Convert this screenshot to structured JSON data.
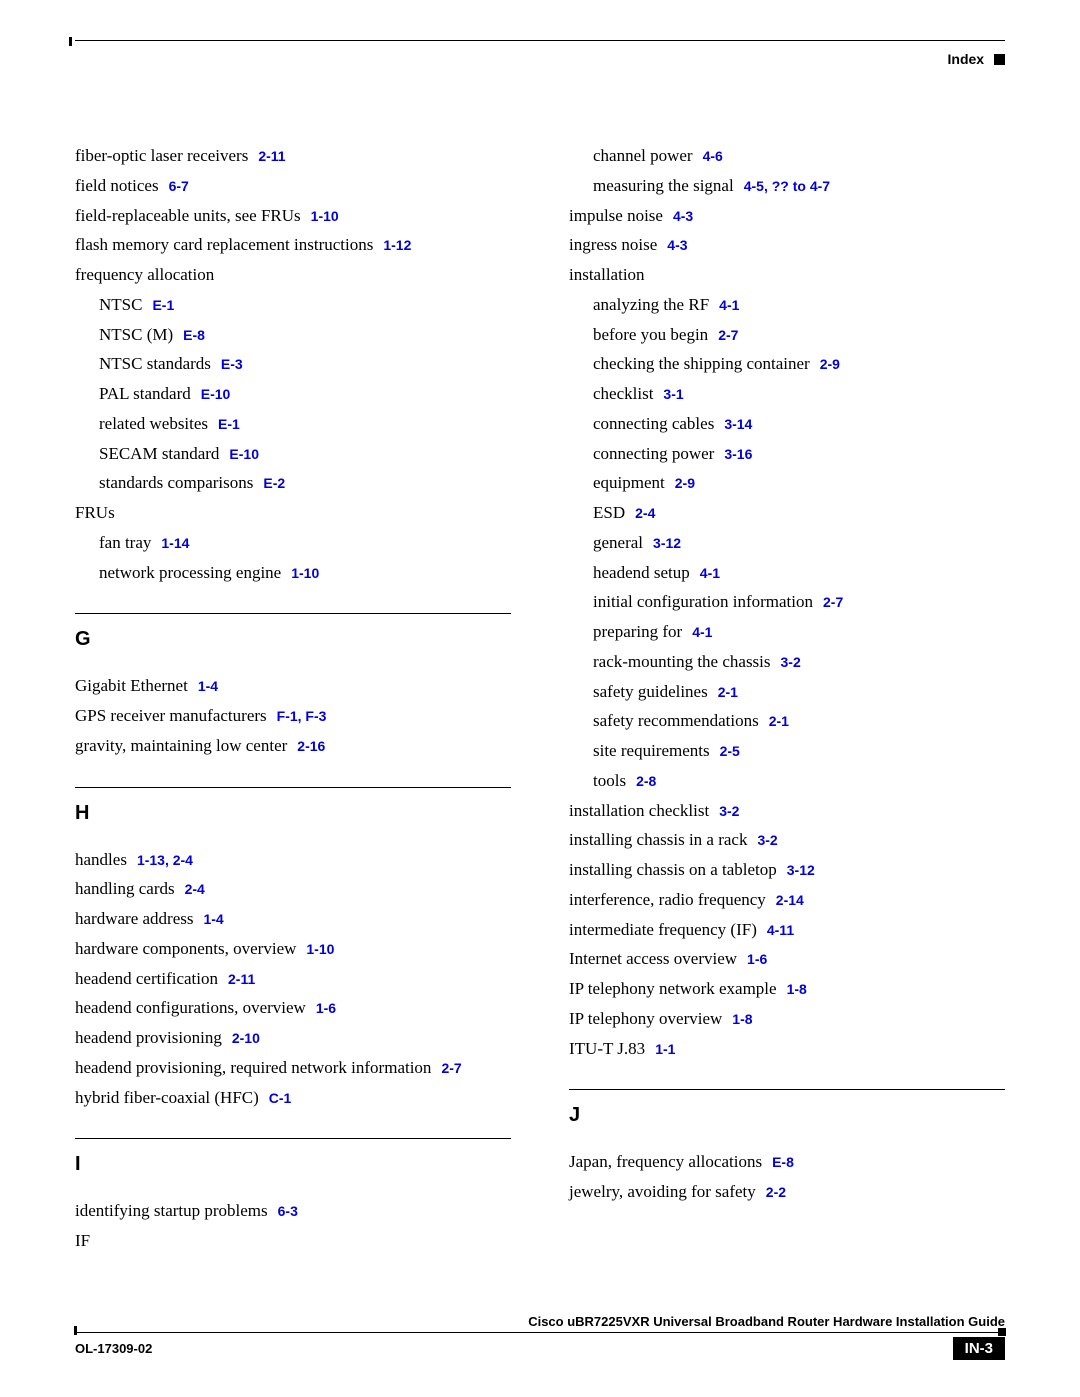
{
  "colors": {
    "link": "#0000d8",
    "text": "#000000",
    "bg": "#ffffff"
  },
  "header": {
    "label": "Index"
  },
  "footer": {
    "title": "Cisco uBR7225VXR Universal Broadband Router Hardware Installation Guide",
    "doc_id": "OL-17309-02",
    "page": "IN-3"
  },
  "left": {
    "pre": [
      {
        "t": "fiber-optic laser receivers",
        "r": "2-11"
      },
      {
        "t": "field notices",
        "r": "6-7"
      },
      {
        "t": "field-replaceable units, see FRUs",
        "r": "1-10"
      },
      {
        "t": "flash memory card replacement instructions",
        "r": "1-12"
      },
      {
        "t": "frequency allocation",
        "r": ""
      },
      {
        "t": "NTSC",
        "r": "E-1",
        "sub": true
      },
      {
        "t": "NTSC (M)",
        "r": "E-8",
        "sub": true
      },
      {
        "t": "NTSC standards",
        "r": "E-3",
        "sub": true
      },
      {
        "t": "PAL standard",
        "r": "E-10",
        "sub": true
      },
      {
        "t": "related websites",
        "r": "E-1",
        "sub": true
      },
      {
        "t": "SECAM standard",
        "r": "E-10",
        "sub": true
      },
      {
        "t": "standards comparisons",
        "r": "E-2",
        "sub": true
      },
      {
        "t": "FRUs",
        "r": ""
      },
      {
        "t": "fan tray",
        "r": "1-14",
        "sub": true
      },
      {
        "t": "network processing engine",
        "r": "1-10",
        "sub": true
      }
    ],
    "sections": [
      {
        "head": "G",
        "items": [
          {
            "t": "Gigabit Ethernet",
            "r": "1-4"
          },
          {
            "t": "GPS receiver manufacturers",
            "r": "F-1, F-3"
          },
          {
            "t": "gravity, maintaining low center",
            "r": "2-16"
          }
        ]
      },
      {
        "head": "H",
        "items": [
          {
            "t": "handles",
            "r": "1-13, 2-4"
          },
          {
            "t": "handling cards",
            "r": "2-4"
          },
          {
            "t": "hardware address",
            "r": "1-4"
          },
          {
            "t": "hardware components, overview",
            "r": "1-10"
          },
          {
            "t": "headend certification",
            "r": "2-11"
          },
          {
            "t": "headend configurations, overview",
            "r": "1-6"
          },
          {
            "t": "headend provisioning",
            "r": "2-10"
          },
          {
            "t": "headend provisioning, required network information",
            "r": "2-7"
          },
          {
            "t": "hybrid fiber-coaxial (HFC)",
            "r": "C-1"
          }
        ]
      },
      {
        "head": "I",
        "items": [
          {
            "t": "identifying startup problems",
            "r": "6-3"
          },
          {
            "t": "IF",
            "r": ""
          }
        ]
      }
    ]
  },
  "right": {
    "pre": [
      {
        "t": "channel power",
        "r": "4-6",
        "sub": true
      },
      {
        "t": "measuring the signal",
        "r": "4-5, ?? to 4-7",
        "sub": true
      },
      {
        "t": "impulse noise",
        "r": "4-3"
      },
      {
        "t": "ingress noise",
        "r": "4-3"
      },
      {
        "t": "installation",
        "r": ""
      },
      {
        "t": "analyzing the RF",
        "r": "4-1",
        "sub": true
      },
      {
        "t": "before you begin",
        "r": "2-7",
        "sub": true
      },
      {
        "t": "checking the shipping container",
        "r": "2-9",
        "sub": true
      },
      {
        "t": "checklist",
        "r": "3-1",
        "sub": true
      },
      {
        "t": "connecting cables",
        "r": "3-14",
        "sub": true
      },
      {
        "t": "connecting power",
        "r": "3-16",
        "sub": true
      },
      {
        "t": "equipment",
        "r": "2-9",
        "sub": true
      },
      {
        "t": "ESD",
        "r": "2-4",
        "sub": true
      },
      {
        "t": "general",
        "r": "3-12",
        "sub": true
      },
      {
        "t": "headend setup",
        "r": "4-1",
        "sub": true
      },
      {
        "t": "initial configuration information",
        "r": "2-7",
        "sub": true
      },
      {
        "t": "preparing for",
        "r": "4-1",
        "sub": true
      },
      {
        "t": "rack-mounting the chassis",
        "r": "3-2",
        "sub": true
      },
      {
        "t": "safety guidelines",
        "r": "2-1",
        "sub": true
      },
      {
        "t": "safety recommendations",
        "r": "2-1",
        "sub": true
      },
      {
        "t": "site requirements",
        "r": "2-5",
        "sub": true
      },
      {
        "t": "tools",
        "r": "2-8",
        "sub": true
      },
      {
        "t": "installation checklist",
        "r": "3-2"
      },
      {
        "t": "installing chassis in a rack",
        "r": "3-2"
      },
      {
        "t": "installing chassis on a tabletop",
        "r": "3-12"
      },
      {
        "t": "interference, radio frequency",
        "r": "2-14"
      },
      {
        "t": "intermediate frequency (IF)",
        "r": "4-11"
      },
      {
        "t": "Internet access overview",
        "r": "1-6"
      },
      {
        "t": "IP telephony network example",
        "r": "1-8"
      },
      {
        "t": "IP telephony overview",
        "r": "1-8"
      },
      {
        "t": "ITU-T J.83",
        "r": "1-1"
      }
    ],
    "sections": [
      {
        "head": "J",
        "items": [
          {
            "t": "Japan, frequency allocations",
            "r": "E-8"
          },
          {
            "t": "jewelry, avoiding for safety",
            "r": "2-2"
          }
        ]
      }
    ]
  }
}
